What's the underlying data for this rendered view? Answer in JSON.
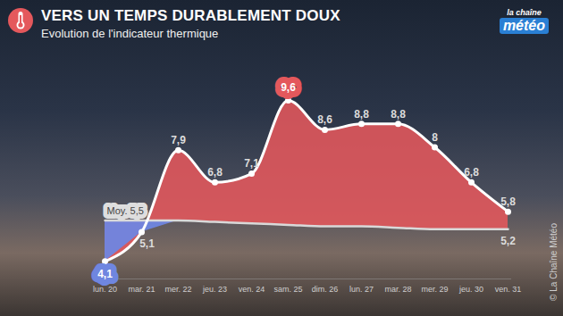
{
  "chart_data": {
    "type": "area",
    "title": "VERS UN TEMPS DURABLEMENT DOUX",
    "subtitle": "Evolution de l'indicateur thermique",
    "logo": [
      "la chaîne",
      "météo"
    ],
    "source": "© La Chaîne Météo",
    "categories": [
      "lun. 20",
      "mar. 21",
      "mer. 22",
      "jeu. 23",
      "ven. 24",
      "sam. 25",
      "dim. 26",
      "lun. 27",
      "mar. 28",
      "mer. 29",
      "jeu. 30",
      "ven. 31"
    ],
    "values": [
      4.1,
      5.1,
      7.9,
      6.8,
      7.1,
      9.6,
      8.6,
      8.8,
      8.8,
      8,
      6.8,
      5.8
    ],
    "value_labels": [
      "4,1",
      "5,1",
      "7,9",
      "6,8",
      "7,1",
      "9,6",
      "8,6",
      "8,8",
      "8,8",
      "8",
      "6,8",
      "5,8"
    ],
    "color": "#e4585c",
    "average": {
      "values": [
        5.5,
        5.5,
        5.5,
        5.45,
        5.4,
        5.35,
        5.3,
        5.3,
        5.25,
        5.2,
        5.2,
        5.2
      ],
      "color": "#d9d9d9",
      "annotations": [
        "Moy. 5,5",
        "5,2"
      ]
    },
    "ylim": [
      3.5,
      10
    ],
    "data_labels": true,
    "tick_labels": "x",
    "grid": false
  }
}
